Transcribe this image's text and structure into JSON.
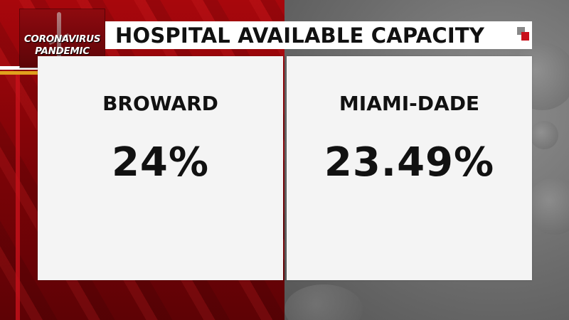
{
  "logo": {
    "line1": "CORONAVIRUS",
    "line2": "PANDEMIC"
  },
  "header": {
    "title": "HOSPITAL AVAILABLE CAPACITY"
  },
  "panels": [
    {
      "label": "BROWARD",
      "value": "24%"
    },
    {
      "label": "MIAMI-DADE",
      "value": "23.49%"
    }
  ],
  "colors": {
    "accent_red": "#c8101a",
    "gold": "#e0a11d",
    "panel_bg": "#f4f4f4"
  }
}
